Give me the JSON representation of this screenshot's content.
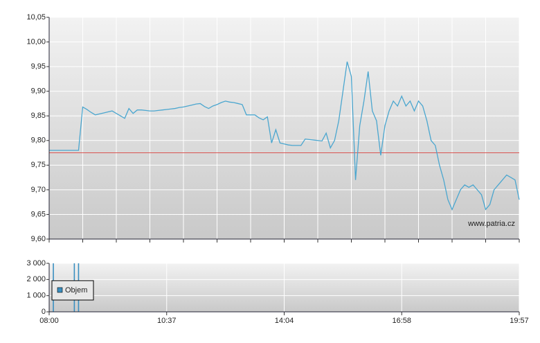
{
  "chart_data": [
    {
      "type": "line",
      "color": "#4aa6cf",
      "reference_line": 9.775,
      "reference_color": "#d9534f",
      "watermark": "www.patria.cz",
      "grid": true,
      "ylim": [
        9.6,
        10.05
      ],
      "yticks": [
        {
          "value": 9.6,
          "label": "9,60"
        },
        {
          "value": 9.65,
          "label": "9,65"
        },
        {
          "value": 9.7,
          "label": "9,70"
        },
        {
          "value": 9.75,
          "label": "9,75"
        },
        {
          "value": 9.8,
          "label": "9,80"
        },
        {
          "value": 9.85,
          "label": "9,85"
        },
        {
          "value": 9.9,
          "label": "9,90"
        },
        {
          "value": 9.95,
          "label": "9,95"
        },
        {
          "value": 10.0,
          "label": "10,00"
        },
        {
          "value": 10.05,
          "label": "10,05"
        }
      ],
      "values": [
        9.78,
        9.78,
        9.78,
        9.78,
        9.78,
        9.78,
        9.78,
        9.78,
        9.868,
        9.863,
        9.857,
        9.852,
        9.854,
        9.856,
        9.858,
        9.86,
        9.855,
        9.85,
        9.845,
        9.865,
        9.855,
        9.862,
        9.862,
        9.861,
        9.86,
        9.86,
        9.861,
        9.862,
        9.863,
        9.864,
        9.865,
        9.867,
        9.868,
        9.87,
        9.872,
        9.874,
        9.875,
        9.869,
        9.865,
        9.87,
        9.873,
        9.877,
        9.88,
        9.878,
        9.877,
        9.875,
        9.873,
        9.852,
        9.852,
        9.852,
        9.846,
        9.842,
        9.848,
        9.795,
        9.822,
        9.795,
        9.793,
        9.791,
        9.79,
        9.79,
        9.79,
        9.803,
        9.802,
        9.801,
        9.8,
        9.799,
        9.815,
        9.785,
        9.8,
        9.84,
        9.9,
        9.96,
        9.93,
        9.72,
        9.83,
        9.88,
        9.94,
        9.86,
        9.84,
        9.77,
        9.83,
        9.86,
        9.88,
        9.87,
        9.89,
        9.87,
        9.88,
        9.86,
        9.88,
        9.87,
        9.84,
        9.8,
        9.79,
        9.75,
        9.72,
        9.68,
        9.66,
        9.68,
        9.7,
        9.71,
        9.705,
        9.71,
        9.7,
        9.69,
        9.66,
        9.67,
        9.7,
        9.71,
        9.72,
        9.73,
        9.725,
        9.72,
        9.68
      ]
    },
    {
      "type": "bar",
      "legend": "upper-left",
      "grid": true,
      "categories": [
        "08:00",
        null,
        null,
        null,
        null,
        null,
        null,
        null,
        null,
        null,
        null,
        null,
        null,
        null,
        null,
        null,
        null,
        null,
        null,
        null,
        null,
        null,
        null,
        null,
        null,
        null,
        null,
        null,
        "10:37",
        null,
        null,
        null,
        null,
        null,
        null,
        null,
        null,
        null,
        null,
        null,
        null,
        null,
        null,
        null,
        null,
        null,
        null,
        null,
        null,
        null,
        null,
        null,
        null,
        null,
        null,
        null,
        "14:04",
        null,
        null,
        null,
        null,
        null,
        null,
        null,
        null,
        null,
        null,
        null,
        null,
        null,
        null,
        null,
        null,
        null,
        null,
        null,
        null,
        null,
        null,
        null,
        null,
        null,
        null,
        null,
        "16:58",
        null,
        null,
        null,
        null,
        null,
        null,
        null,
        null,
        null,
        null,
        null,
        null,
        null,
        null,
        null,
        null,
        null,
        null,
        null,
        null,
        null,
        null,
        null,
        null,
        null,
        null,
        null,
        "19:57"
      ],
      "ylim": [
        0,
        3000
      ],
      "yticks": [
        0,
        {
          "value": 1000,
          "label": "1 000"
        },
        {
          "value": 2000,
          "label": "2 000"
        },
        {
          "value": 3000,
          "label": "3 000"
        }
      ],
      "series": [
        {
          "name": "Objem",
          "color": "#3a8fc0",
          "values": [
            0,
            3000,
            0,
            0,
            0,
            0,
            3000,
            3000,
            0,
            0,
            0,
            0,
            0,
            0,
            0,
            0,
            0,
            0,
            0,
            0,
            0,
            0,
            0,
            0,
            0,
            0,
            0,
            0,
            0,
            0,
            0,
            0,
            0,
            0,
            0,
            0,
            0,
            0,
            0,
            0,
            0,
            0,
            0,
            0,
            0,
            0,
            0,
            0,
            0,
            0,
            0,
            0,
            0,
            0,
            0,
            0,
            0,
            0,
            0,
            0,
            0,
            0,
            0,
            0,
            0,
            0,
            0,
            0,
            0,
            0,
            0,
            0,
            0,
            0,
            0,
            0,
            0,
            0,
            0,
            0,
            0,
            0,
            0,
            0,
            0,
            0,
            0,
            0,
            0,
            0,
            0,
            0,
            0,
            0,
            0,
            0,
            0,
            0,
            0,
            0,
            0,
            0,
            0,
            0,
            0,
            0,
            0,
            0,
            0,
            0,
            0,
            0,
            0
          ]
        }
      ]
    }
  ]
}
